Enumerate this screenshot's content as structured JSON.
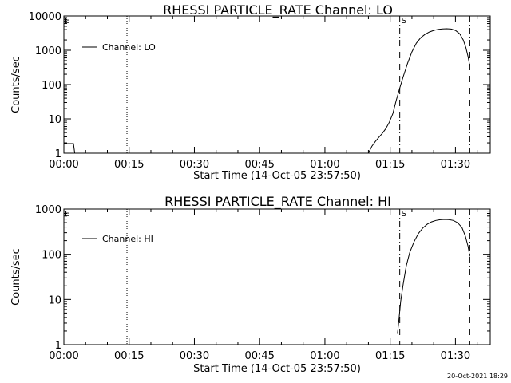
{
  "footer": {
    "timestamp": "20-Oct-2021 18:29"
  },
  "chart_data": [
    {
      "type": "line",
      "title": "RHESSI PARTICLE_RATE Channel: LO",
      "xlabel": "Start Time (14-Oct-05 23:57:50)",
      "ylabel": "Counts/sec",
      "yscale": "log",
      "ylim": [
        1,
        10000
      ],
      "y_ticks": [
        1,
        10,
        100,
        1000,
        10000
      ],
      "y_tick_labels": [
        "1",
        "10",
        "100",
        "1000",
        "10000"
      ],
      "xlim": [
        0,
        98
      ],
      "x_ticks": [
        0,
        15,
        30,
        45,
        60,
        75,
        90
      ],
      "x_tick_labels": [
        "00:00",
        "00:15",
        "00:30",
        "00:45",
        "01:00",
        "01:15",
        "01:30"
      ],
      "legend": {
        "placement": "top-left",
        "entries": [
          "Channel: LO"
        ]
      },
      "color": "#000000",
      "grid": false,
      "series": [
        {
          "name": "Channel: LO",
          "segments": [
            [
              [
                0,
                1.9
              ],
              [
                1.2,
                1.9
              ],
              [
                2.2,
                1.9
              ],
              [
                2.5,
                1.0
              ]
            ],
            [
              [
                70.0,
                1.0
              ],
              [
                70.8,
                1.6
              ],
              [
                71.6,
                2.2
              ],
              [
                72.4,
                2.9
              ],
              [
                73.2,
                3.8
              ],
              [
                74.0,
                5.2
              ],
              [
                74.8,
                8.0
              ],
              [
                75.6,
                14
              ],
              [
                76.4,
                35
              ],
              [
                77.2,
                80
              ],
              [
                78.0,
                170
              ],
              [
                79.0,
                420
              ],
              [
                80.0,
                900
              ],
              [
                81.0,
                1600
              ],
              [
                82.0,
                2300
              ],
              [
                83.0,
                2900
              ],
              [
                84.0,
                3400
              ],
              [
                85.0,
                3800
              ],
              [
                86.0,
                4050
              ],
              [
                87.0,
                4200
              ],
              [
                88.0,
                4250
              ],
              [
                89.0,
                4150
              ],
              [
                90.0,
                3800
              ],
              [
                91.0,
                3000
              ],
              [
                91.8,
                2000
              ],
              [
                92.4,
                1200
              ],
              [
                92.9,
                650
              ],
              [
                93.3,
                350
              ]
            ]
          ]
        }
      ],
      "vertical_lines": [
        {
          "x": 14.5,
          "style": "dotted"
        },
        {
          "x": 77.2,
          "style": "dashdot",
          "label": "S"
        },
        {
          "x": 93.3,
          "style": "dashdot"
        }
      ],
      "corner_marker": "E"
    },
    {
      "type": "line",
      "title": "RHESSI PARTICLE_RATE Channel: HI",
      "xlabel": "Start Time (14-Oct-05 23:57:50)",
      "ylabel": "Counts/sec",
      "yscale": "log",
      "ylim": [
        1,
        1000
      ],
      "y_ticks": [
        1,
        10,
        100,
        1000
      ],
      "y_tick_labels": [
        "1",
        "10",
        "100",
        "1000"
      ],
      "xlim": [
        0,
        98
      ],
      "x_ticks": [
        0,
        15,
        30,
        45,
        60,
        75,
        90
      ],
      "x_tick_labels": [
        "00:00",
        "00:15",
        "00:30",
        "00:45",
        "01:00",
        "01:15",
        "01:30"
      ],
      "legend": {
        "placement": "top-left",
        "entries": [
          "Channel: HI"
        ]
      },
      "color": "#000000",
      "grid": false,
      "series": [
        {
          "name": "Channel: HI",
          "segments": [
            [
              [
                76.7,
                1.8
              ],
              [
                77.0,
                3.5
              ],
              [
                77.4,
                9
              ],
              [
                78.0,
                22
              ],
              [
                78.7,
                55
              ],
              [
                79.5,
                110
              ],
              [
                80.5,
                190
              ],
              [
                81.5,
                290
              ],
              [
                82.5,
                380
              ],
              [
                83.5,
                460
              ],
              [
                84.5,
                520
              ],
              [
                85.5,
                560
              ],
              [
                86.5,
                580
              ],
              [
                87.5,
                590
              ],
              [
                88.5,
                585
              ],
              [
                89.5,
                560
              ],
              [
                90.5,
                500
              ],
              [
                91.5,
                390
              ],
              [
                92.3,
                250
              ],
              [
                92.9,
                150
              ],
              [
                93.3,
                90
              ]
            ]
          ]
        }
      ],
      "vertical_lines": [
        {
          "x": 14.5,
          "style": "dotted"
        },
        {
          "x": 77.2,
          "style": "dashdot",
          "label": "S"
        },
        {
          "x": 93.3,
          "style": "dashdot"
        }
      ],
      "corner_marker": "E"
    }
  ]
}
